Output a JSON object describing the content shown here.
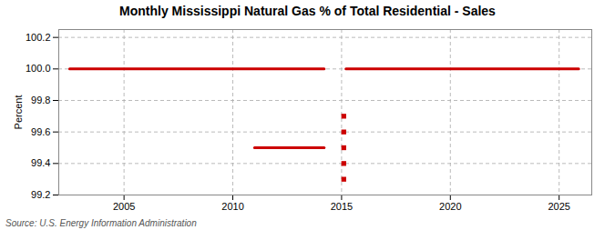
{
  "chart_data": {
    "type": "line",
    "title": "Monthly Mississippi Natural Gas % of Total Residential - Sales",
    "ylabel": "Percent",
    "source": "Source: U.S. Energy Information Administration",
    "color": "#cc0000",
    "series": [
      {
        "type": "line",
        "x": [
          2002.5,
          2014.2
        ],
        "values": [
          100.0,
          100.0
        ]
      },
      {
        "type": "line",
        "x": [
          2011.0,
          2014.2
        ],
        "values": [
          99.5,
          99.5
        ]
      },
      {
        "type": "line",
        "x": [
          2015.2,
          2025.9
        ],
        "values": [
          100.0,
          100.0
        ]
      },
      {
        "type": "scatter",
        "marker": "square",
        "x": [
          2015.1,
          2015.1,
          2015.1,
          2015.1,
          2015.1
        ],
        "values": [
          99.7,
          99.6,
          99.5,
          99.4,
          99.3
        ]
      }
    ],
    "xlim": [
      2002.0,
      2026.5
    ],
    "xticks": [
      2005,
      2010,
      2015,
      2020,
      2025
    ],
    "ylim": [
      99.2,
      100.25
    ],
    "yticks": [
      99.2,
      99.4,
      99.6,
      99.8,
      {
        "value": 100.0,
        "label": "100.0"
      },
      100.2
    ],
    "grid": true
  }
}
